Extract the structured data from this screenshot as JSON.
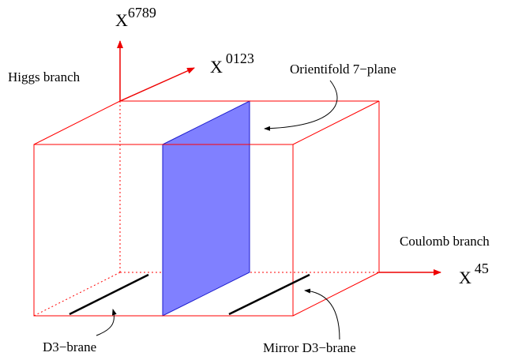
{
  "labels": {
    "axis_vertical": {
      "base": "X",
      "sup": "6789"
    },
    "axis_depth": {
      "base": "X",
      "sup": "0123"
    },
    "axis_horizontal": {
      "base": "X",
      "sup": "45"
    },
    "higgs_branch": "Higgs branch",
    "coulomb_branch": "Coulomb branch",
    "orientifold": "Orientifold 7−plane",
    "d3_brane": "D3−brane",
    "mirror_d3_brane": "Mirror D3−brane"
  },
  "colors": {
    "box": "#ff0000",
    "axes": "#ee0000",
    "plane_fill": "#8080ff",
    "plane_edge": "#1a1acc",
    "brane": "#000000"
  }
}
